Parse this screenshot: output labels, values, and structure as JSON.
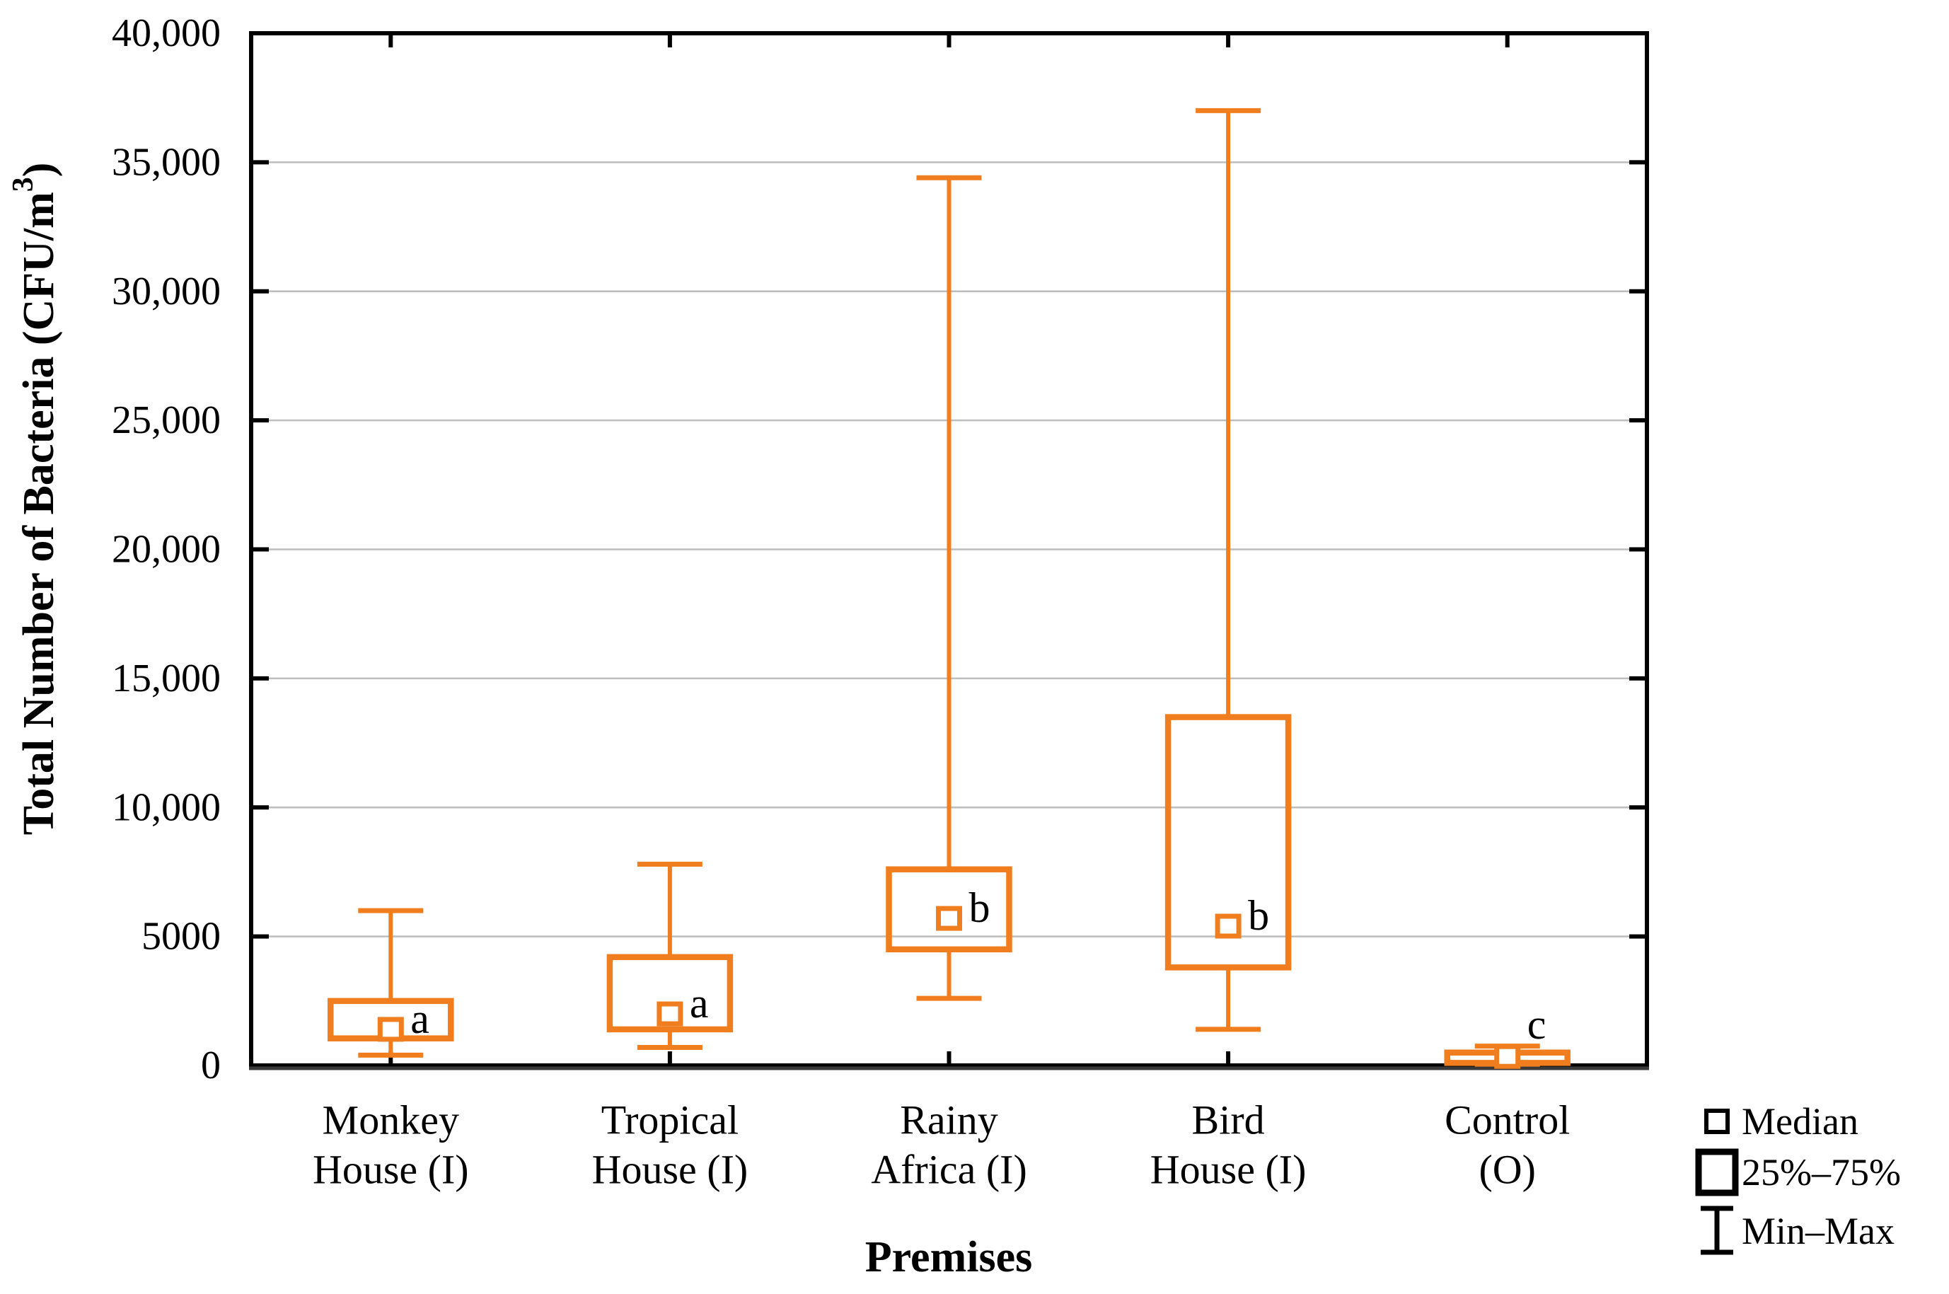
{
  "figure": {
    "ylabel_parts": {
      "base": "Total Number of Bacteria (CFU/m",
      "sup": "3",
      "close": ")"
    }
  },
  "chart_data": {
    "type": "box",
    "title": "",
    "xlabel": "Premises",
    "ylabel": "Total Number of Bacteria (CFU/m³)",
    "ylim": [
      0,
      40000
    ],
    "ytick_step": 5000,
    "ytick_labels": [
      "0",
      "5000",
      "10,000",
      "15,000",
      "20,000",
      "25,000",
      "30,000",
      "35,000",
      "40,000"
    ],
    "grid": true,
    "legend_position": "bottom-right",
    "categories": [
      "Monkey House (I)",
      "Tropical House (I)",
      "Rainy Africa (I)",
      "Bird House (I)",
      "Control (O)"
    ],
    "series": [
      {
        "name": "Monkey House (I)",
        "label_lines": [
          "Monkey",
          "House (I)"
        ],
        "letter": "a",
        "min": 400,
        "q1": 1050,
        "median": 1400,
        "q3": 2500,
        "max": 6000
      },
      {
        "name": "Tropical House (I)",
        "label_lines": [
          "Tropical",
          "House (I)"
        ],
        "letter": "a",
        "min": 700,
        "q1": 1400,
        "median": 2000,
        "q3": 4200,
        "max": 7800
      },
      {
        "name": "Rainy Africa (I)",
        "label_lines": [
          "Rainy",
          "Africa (I)"
        ],
        "letter": "b",
        "min": 2600,
        "q1": 4500,
        "median": 5700,
        "q3": 7600,
        "max": 34400
      },
      {
        "name": "Bird House (I)",
        "label_lines": [
          "Bird",
          "House (I)"
        ],
        "letter": "b",
        "min": 1400,
        "q1": 3800,
        "median": 5400,
        "q3": 13500,
        "max": 37000
      },
      {
        "name": "Control (O)",
        "label_lines": [
          "Control",
          "(O)"
        ],
        "letter": "c",
        "min": 50,
        "q1": 100,
        "median": 350,
        "q3": 500,
        "max": 750
      }
    ],
    "legend": [
      {
        "symbol": "median-square",
        "label": "Median"
      },
      {
        "symbol": "iqr-box",
        "label": "25%–75%"
      },
      {
        "symbol": "minmax-whisker",
        "label": "Min–Max"
      }
    ],
    "colors": {
      "box": "#F07D1E",
      "grid": "#BDBDBD",
      "axis": "#000000",
      "legend_symbol": "#000000",
      "background": "#FFFFFF"
    }
  }
}
